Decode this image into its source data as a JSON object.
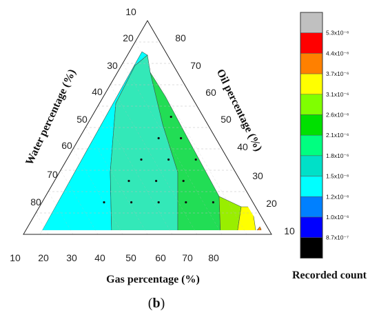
{
  "chart_data": {
    "type": "heatmap",
    "subtype": "ternary-contour",
    "panel_label_open": "(",
    "panel_label_letter": "b",
    "panel_label_close": ")",
    "axes": {
      "water": {
        "label": "Water percentage (%)",
        "ticks": [
          10,
          20,
          30,
          40,
          50,
          60,
          70,
          80
        ]
      },
      "oil": {
        "label": "Oil percentage (%)",
        "ticks": [
          10,
          20,
          30,
          40,
          50,
          60,
          70,
          80
        ]
      },
      "gas": {
        "label": "Gas percentage (%)",
        "ticks": [
          10,
          20,
          30,
          40,
          50,
          60,
          70,
          80
        ]
      }
    },
    "colorbar": {
      "label": "Recorded count",
      "levels": [
        {
          "label": "5.3x10⁻⁶",
          "color": "#c0c0c0"
        },
        {
          "label": "4.4x10⁻⁶",
          "color": "#ff0000"
        },
        {
          "label": "3.7x10⁻⁶",
          "color": "#ff8000"
        },
        {
          "label": "3.1x10⁻⁶",
          "color": "#ffff00"
        },
        {
          "label": "2.6x10⁻⁶",
          "color": "#80ff00"
        },
        {
          "label": "2.1x10⁻⁶",
          "color": "#00e000"
        },
        {
          "label": "1.8x10⁻⁶",
          "color": "#00ff80"
        },
        {
          "label": "1.5x10⁻⁶",
          "color": "#00e0c8"
        },
        {
          "label": "1.2x10⁻⁶",
          "color": "#00ffff"
        },
        {
          "label": "1.0x10⁻⁶",
          "color": "#0080ff"
        },
        {
          "label": "8.7x10⁻⁷",
          "color": "#0000ff"
        },
        {
          "label": "",
          "color": "#000000"
        }
      ]
    },
    "contour_regions": [
      {
        "level": "1.2x10⁻⁶",
        "color": "#00ffff",
        "gas_range_at_base": [
          10,
          37
        ]
      },
      {
        "level": "1.5x10⁻⁶",
        "color": "#33e8b8",
        "gas_range_at_base": [
          37,
          58
        ]
      },
      {
        "level": "1.8x10⁻⁶",
        "color": "#22dd55",
        "gas_range_at_base": [
          58,
          72
        ]
      },
      {
        "level": "2.6x10⁻⁶",
        "color": "#99ee00",
        "gas_range_at_base": [
          72,
          78
        ]
      },
      {
        "level": "3.1x10⁻⁶",
        "color": "#ffff00",
        "gas_range_at_base": [
          78,
          84
        ]
      },
      {
        "level": "3.7x10⁻⁶",
        "color": "#ff8000",
        "gas_range_at_base": [
          84,
          86
        ]
      }
    ],
    "sample_points": [
      {
        "gas": 25,
        "oil": 15,
        "water": 60
      },
      {
        "gas": 36,
        "oil": 15,
        "water": 49
      },
      {
        "gas": 47,
        "oil": 15,
        "water": 38
      },
      {
        "gas": 58,
        "oil": 15,
        "water": 27
      },
      {
        "gas": 69,
        "oil": 15,
        "water": 16
      },
      {
        "gas": 30,
        "oil": 25,
        "water": 45
      },
      {
        "gas": 41,
        "oil": 25,
        "water": 34
      },
      {
        "gas": 52,
        "oil": 25,
        "water": 23
      },
      {
        "gas": 30,
        "oil": 35,
        "water": 35
      },
      {
        "gas": 41,
        "oil": 35,
        "water": 24
      },
      {
        "gas": 52,
        "oil": 35,
        "water": 13
      },
      {
        "gas": 32,
        "oil": 45,
        "water": 23
      },
      {
        "gas": 41,
        "oil": 45,
        "water": 14
      },
      {
        "gas": 32,
        "oil": 55,
        "water": 13
      }
    ]
  }
}
